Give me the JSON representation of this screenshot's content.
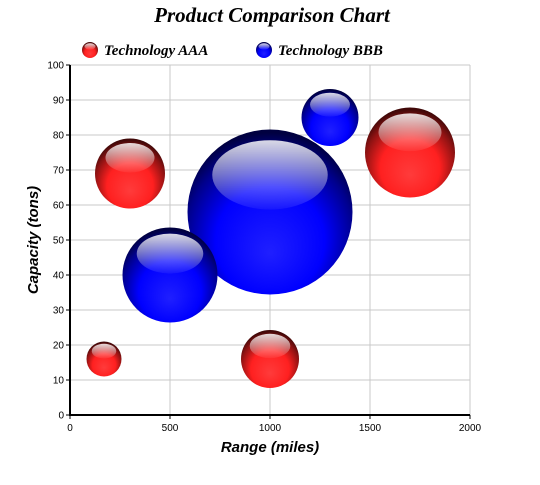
{
  "chart_data": {
    "type": "bubble",
    "title": "Product Comparison Chart",
    "xlabel": "Range (miles)",
    "ylabel": "Capacity (tons)",
    "xlim": [
      0,
      2000
    ],
    "ylim": [
      0,
      100
    ],
    "xticks": [
      0,
      500,
      1000,
      1500,
      2000
    ],
    "yticks": [
      0,
      10,
      20,
      30,
      40,
      50,
      60,
      70,
      80,
      90,
      100
    ],
    "grid": true,
    "legend": "top-left",
    "series": [
      {
        "name": "Technology AAA",
        "color": "#ff2020",
        "points": [
          {
            "x": 170,
            "y": 16,
            "size": 35
          },
          {
            "x": 300,
            "y": 69,
            "size": 70
          },
          {
            "x": 1000,
            "y": 16,
            "size": 58
          },
          {
            "x": 1700,
            "y": 75,
            "size": 90
          }
        ]
      },
      {
        "name": "Technology BBB",
        "color": "#0000ff",
        "points": [
          {
            "x": 500,
            "y": 40,
            "size": 95
          },
          {
            "x": 1000,
            "y": 58,
            "size": 165
          },
          {
            "x": 1300,
            "y": 85,
            "size": 57
          }
        ]
      }
    ]
  }
}
